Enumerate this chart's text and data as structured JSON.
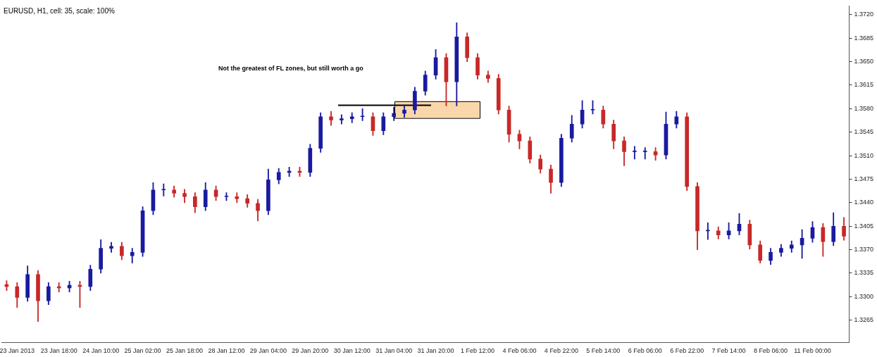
{
  "chart_data": {
    "type": "candlestick",
    "title": "EURUSD, H1, cell: 35, scale: 100%",
    "annotations": [
      "Not the greatest of FL zones, but still worth a go"
    ],
    "categories": [
      null,
      "23 Jan 2013",
      null,
      null,
      null,
      "23 Jan 18:00",
      null,
      null,
      null,
      "24 Jan 10:00",
      null,
      null,
      null,
      "25 Jan 02:00",
      null,
      null,
      null,
      "25 Jan 18:00",
      null,
      null,
      null,
      "28 Jan 12:00",
      null,
      null,
      null,
      "29 Jan 04:00",
      null,
      null,
      null,
      "29 Jan 20:00",
      null,
      null,
      null,
      "30 Jan 12:00",
      null,
      null,
      null,
      "31 Jan 04:00",
      null,
      null,
      null,
      "31 Jan 20:00",
      null,
      null,
      null,
      "1 Feb 12:00",
      null,
      null,
      null,
      "4 Feb 06:00",
      null,
      null,
      null,
      "4 Feb 22:00",
      null,
      null,
      null,
      "5 Feb 14:00",
      null,
      null,
      null,
      "6 Feb 06:00",
      null,
      null,
      null,
      "6 Feb 22:00",
      null,
      null,
      null,
      "7 Feb 14:00",
      null,
      null,
      null,
      "8 Feb 06:00",
      null,
      null,
      null,
      "11 Feb 00:00",
      null,
      null,
      null
    ],
    "ohlc": [
      [
        1.3318,
        1.3324,
        1.3309,
        1.3315
      ],
      [
        1.3315,
        1.3321,
        1.3284,
        1.3299
      ],
      [
        1.3299,
        1.3346,
        1.3293,
        1.3333
      ],
      [
        1.3333,
        1.3339,
        1.3263,
        1.3294
      ],
      [
        1.3294,
        1.3321,
        1.3288,
        1.3315
      ],
      [
        1.3315,
        1.3321,
        1.3307,
        1.3313
      ],
      [
        1.3313,
        1.3323,
        1.3307,
        1.3317
      ],
      [
        1.3317,
        1.3323,
        1.3284,
        1.3315
      ],
      [
        1.3315,
        1.3347,
        1.3309,
        1.3341
      ],
      [
        1.3341,
        1.3385,
        1.3335,
        1.3372
      ],
      [
        1.3372,
        1.3381,
        1.3366,
        1.3375
      ],
      [
        1.3375,
        1.3381,
        1.3355,
        1.3361
      ],
      [
        1.3361,
        1.3372,
        1.335,
        1.3366
      ],
      [
        1.3366,
        1.3434,
        1.336,
        1.3428
      ],
      [
        1.3428,
        1.347,
        1.3422,
        1.3459
      ],
      [
        1.3459,
        1.3468,
        1.345,
        1.3459
      ],
      [
        1.3459,
        1.3465,
        1.3448,
        1.3454
      ],
      [
        1.3454,
        1.346,
        1.344,
        1.3449
      ],
      [
        1.3449,
        1.3455,
        1.3425,
        1.3434
      ],
      [
        1.3434,
        1.347,
        1.3428,
        1.3459
      ],
      [
        1.3459,
        1.3465,
        1.3443,
        1.3449
      ],
      [
        1.3449,
        1.3455,
        1.3443,
        1.3449
      ],
      [
        1.3449,
        1.3455,
        1.344,
        1.3446
      ],
      [
        1.3446,
        1.3452,
        1.3433,
        1.3439
      ],
      [
        1.3439,
        1.3445,
        1.3413,
        1.3428
      ],
      [
        1.3428,
        1.349,
        1.3422,
        1.3474
      ],
      [
        1.3474,
        1.3491,
        1.3468,
        1.3485
      ],
      [
        1.3485,
        1.3493,
        1.3479,
        1.3487
      ],
      [
        1.3487,
        1.3493,
        1.3479,
        1.3485
      ],
      [
        1.3485,
        1.3527,
        1.3479,
        1.3521
      ],
      [
        1.3521,
        1.3574,
        1.3515,
        1.3568
      ],
      [
        1.3568,
        1.3576,
        1.3555,
        1.3563
      ],
      [
        1.3563,
        1.3571,
        1.3557,
        1.3565
      ],
      [
        1.3565,
        1.3574,
        1.3559,
        1.3568
      ],
      [
        1.3568,
        1.358,
        1.3562,
        1.3568
      ],
      [
        1.3568,
        1.3574,
        1.354,
        1.3547
      ],
      [
        1.3547,
        1.3574,
        1.3541,
        1.3568
      ],
      [
        1.3568,
        1.3582,
        1.3562,
        1.3573
      ],
      [
        1.3573,
        1.3584,
        1.3567,
        1.3578
      ],
      [
        1.3578,
        1.3612,
        1.3572,
        1.3606
      ],
      [
        1.3606,
        1.3636,
        1.36,
        1.363
      ],
      [
        1.363,
        1.3668,
        1.3624,
        1.3656
      ],
      [
        1.3656,
        1.3662,
        1.3584,
        1.362
      ],
      [
        1.362,
        1.3708,
        1.3584,
        1.3687
      ],
      [
        1.3687,
        1.3693,
        1.365,
        1.3656
      ],
      [
        1.3656,
        1.3662,
        1.3624,
        1.363
      ],
      [
        1.363,
        1.3636,
        1.3619,
        1.3625
      ],
      [
        1.3625,
        1.3631,
        1.3572,
        1.3578
      ],
      [
        1.3578,
        1.3584,
        1.353,
        1.3542
      ],
      [
        1.3542,
        1.3548,
        1.352,
        1.3532
      ],
      [
        1.3532,
        1.3538,
        1.3499,
        1.3505
      ],
      [
        1.3505,
        1.3511,
        1.3484,
        1.349
      ],
      [
        1.349,
        1.3496,
        1.3454,
        1.347
      ],
      [
        1.347,
        1.3542,
        1.3464,
        1.3536
      ],
      [
        1.3536,
        1.357,
        1.353,
        1.3557
      ],
      [
        1.3557,
        1.3592,
        1.3551,
        1.3578
      ],
      [
        1.3578,
        1.3592,
        1.3572,
        1.3578
      ],
      [
        1.3578,
        1.3584,
        1.3551,
        1.3557
      ],
      [
        1.3557,
        1.3563,
        1.352,
        1.3532
      ],
      [
        1.3532,
        1.3538,
        1.3495,
        1.3516
      ],
      [
        1.3516,
        1.3524,
        1.3505,
        1.3516
      ],
      [
        1.3516,
        1.3522,
        1.3505,
        1.3516
      ],
      [
        1.3516,
        1.3522,
        1.3503,
        1.3511
      ],
      [
        1.3511,
        1.3575,
        1.3505,
        1.3557
      ],
      [
        1.3557,
        1.3576,
        1.3551,
        1.3568
      ],
      [
        1.3568,
        1.3574,
        1.3458,
        1.3464
      ],
      [
        1.3464,
        1.347,
        1.337,
        1.3398
      ],
      [
        1.3398,
        1.341,
        1.3385,
        1.3398
      ],
      [
        1.3398,
        1.3404,
        1.3386,
        1.3392
      ],
      [
        1.3392,
        1.341,
        1.3386,
        1.3398
      ],
      [
        1.3398,
        1.3424,
        1.3392,
        1.3408
      ],
      [
        1.3408,
        1.3414,
        1.3371,
        1.3377
      ],
      [
        1.3377,
        1.3383,
        1.335,
        1.3354
      ],
      [
        1.3354,
        1.3372,
        1.3348,
        1.3366
      ],
      [
        1.3366,
        1.3378,
        1.336,
        1.3372
      ],
      [
        1.3372,
        1.3383,
        1.3366,
        1.3377
      ],
      [
        1.3377,
        1.34,
        1.3357,
        1.3387
      ],
      [
        1.3387,
        1.3412,
        1.3381,
        1.3403
      ],
      [
        1.3403,
        1.3409,
        1.336,
        1.3382
      ],
      [
        1.3382,
        1.3425,
        1.3376,
        1.3405
      ],
      [
        1.3405,
        1.3418,
        1.3384,
        1.339
      ]
    ],
    "colors": [
      "#c82828",
      "#c82828",
      "#1a1aa0",
      "#c82828",
      "#1a1aa0",
      "#c82828",
      "#1a1aa0",
      "#c82828",
      "#1a1aa0",
      "#1a1aa0",
      "#1a1aa0",
      "#c82828",
      "#1a1aa0",
      "#1a1aa0",
      "#1a1aa0",
      "#1a1aa0",
      "#c82828",
      "#c82828",
      "#c82828",
      "#1a1aa0",
      "#c82828",
      "#1a1aa0",
      "#c82828",
      "#c82828",
      "#c82828",
      "#1a1aa0",
      "#1a1aa0",
      "#1a1aa0",
      "#c82828",
      "#1a1aa0",
      "#1a1aa0",
      "#c82828",
      "#1a1aa0",
      "#1a1aa0",
      "#1a1aa0",
      "#c82828",
      "#1a1aa0",
      "#1a1aa0",
      "#1a1aa0",
      "#1a1aa0",
      "#1a1aa0",
      "#1a1aa0",
      "#c82828",
      "#1a1aa0",
      "#c82828",
      "#c82828",
      "#c82828",
      "#c82828",
      "#c82828",
      "#c82828",
      "#c82828",
      "#c82828",
      "#c82828",
      "#1a1aa0",
      "#1a1aa0",
      "#1a1aa0",
      "#1a1aa0",
      "#c82828",
      "#c82828",
      "#c82828",
      "#1a1aa0",
      "#1a1aa0",
      "#c82828",
      "#1a1aa0",
      "#1a1aa0",
      "#c82828",
      "#c82828",
      "#1a1aa0",
      "#c82828",
      "#1a1aa0",
      "#1a1aa0",
      "#c82828",
      "#c82828",
      "#1a1aa0",
      "#1a1aa0",
      "#1a1aa0",
      "#1a1aa0",
      "#1a1aa0",
      "#c82828",
      "#1a1aa0",
      "#c82828"
    ],
    "ylim": [
      1.3232,
      1.3733
    ],
    "yticks": [
      {
        "value": 1.3265,
        "label": "1.3265"
      },
      {
        "value": 1.33,
        "label": "1.3300"
      },
      {
        "value": 1.3335,
        "label": "1.3335"
      },
      {
        "value": 1.337,
        "label": "1.3370"
      },
      {
        "value": 1.3405,
        "label": "1.3405"
      },
      {
        "value": 1.344,
        "label": "1.3440"
      },
      {
        "value": 1.3475,
        "label": "1.3475"
      },
      {
        "value": 1.351,
        "label": "1.3510"
      },
      {
        "value": 1.3545,
        "label": "1.3545"
      },
      {
        "value": 1.358,
        "label": "1.3580"
      },
      {
        "value": 1.3615,
        "label": "1.3615"
      },
      {
        "value": 1.365,
        "label": "1.3650"
      },
      {
        "value": 1.3685,
        "label": "1.3685"
      },
      {
        "value": 1.372,
        "label": "1.3720"
      }
    ],
    "bands": [
      {
        "axis": "y",
        "from": 1.3566,
        "to": 1.3591,
        "color": "#fad7aa"
      }
    ],
    "ref_lines": [
      {
        "axis": "y",
        "value": 1.3585,
        "color": "#000000"
      }
    ],
    "grid": false,
    "legend": false
  }
}
